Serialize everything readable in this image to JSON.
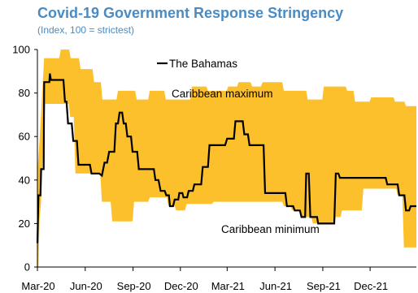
{
  "title": "Covid-19 Government Response Stringency",
  "subtitle": "(Index, 100 = strictest)",
  "colors": {
    "band": "#fcc02c",
    "line": "#000000",
    "title": "#4a8bc2"
  },
  "chart_data": {
    "type": "area",
    "title": "Covid-19 Government Response Stringency",
    "subtitle": "(Index, 100 = strictest)",
    "xlabel": "",
    "ylabel": "",
    "ylim": [
      0,
      100
    ],
    "yticks": [
      0,
      20,
      40,
      60,
      80,
      100
    ],
    "xticks": [
      {
        "date": "2020-03-01",
        "label": "Mar-20"
      },
      {
        "date": "2020-06-01",
        "label": "Jun-20"
      },
      {
        "date": "2020-09-01",
        "label": "Sep-20"
      },
      {
        "date": "2020-12-01",
        "label": "Dec-20"
      },
      {
        "date": "2021-03-01",
        "label": "Mar-21"
      },
      {
        "date": "2021-06-01",
        "label": "Jun-21"
      },
      {
        "date": "2021-09-01",
        "label": "Sep-21"
      },
      {
        "date": "2021-12-01",
        "label": "Dec-21"
      }
    ],
    "xlim": [
      "2020-03-01",
      "2022-02-28"
    ],
    "grid": false,
    "series": [
      {
        "name": "The Bahamas",
        "type": "line",
        "points": [
          [
            "2020-03-01",
            11
          ],
          [
            "2020-03-03",
            33
          ],
          [
            "2020-03-07",
            33
          ],
          [
            "2020-03-08",
            45
          ],
          [
            "2020-03-13",
            45
          ],
          [
            "2020-03-14",
            85
          ],
          [
            "2020-03-24",
            85
          ],
          [
            "2020-03-25",
            89
          ],
          [
            "2020-03-27",
            86
          ],
          [
            "2020-04-20",
            86
          ],
          [
            "2020-04-23",
            76
          ],
          [
            "2020-04-26",
            76
          ],
          [
            "2020-04-29",
            66
          ],
          [
            "2020-05-06",
            66
          ],
          [
            "2020-05-09",
            58
          ],
          [
            "2020-05-16",
            58
          ],
          [
            "2020-05-19",
            47
          ],
          [
            "2020-06-10",
            47
          ],
          [
            "2020-06-13",
            43
          ],
          [
            "2020-06-28",
            43
          ],
          [
            "2020-07-03",
            42
          ],
          [
            "2020-07-08",
            48
          ],
          [
            "2020-07-13",
            48
          ],
          [
            "2020-07-17",
            53
          ],
          [
            "2020-07-27",
            53
          ],
          [
            "2020-07-30",
            66
          ],
          [
            "2020-08-03",
            66
          ],
          [
            "2020-08-06",
            71
          ],
          [
            "2020-08-11",
            71
          ],
          [
            "2020-08-14",
            66
          ],
          [
            "2020-08-18",
            66
          ],
          [
            "2020-08-21",
            60
          ],
          [
            "2020-08-28",
            60
          ],
          [
            "2020-08-31",
            53
          ],
          [
            "2020-09-09",
            53
          ],
          [
            "2020-09-12",
            45
          ],
          [
            "2020-10-11",
            45
          ],
          [
            "2020-10-14",
            40
          ],
          [
            "2020-10-20",
            40
          ],
          [
            "2020-10-24",
            35
          ],
          [
            "2020-11-01",
            35
          ],
          [
            "2020-11-04",
            33
          ],
          [
            "2020-11-09",
            33
          ],
          [
            "2020-11-11",
            28
          ],
          [
            "2020-11-17",
            28
          ],
          [
            "2020-11-20",
            31
          ],
          [
            "2020-11-27",
            31
          ],
          [
            "2020-11-29",
            34
          ],
          [
            "2020-12-05",
            34
          ],
          [
            "2020-12-07",
            32
          ],
          [
            "2020-12-14",
            32
          ],
          [
            "2020-12-17",
            35
          ],
          [
            "2020-12-25",
            35
          ],
          [
            "2020-12-28",
            38
          ],
          [
            "2021-01-10",
            38
          ],
          [
            "2021-01-13",
            46
          ],
          [
            "2021-01-23",
            46
          ],
          [
            "2021-01-26",
            56
          ],
          [
            "2021-02-25",
            56
          ],
          [
            "2021-03-01",
            59
          ],
          [
            "2021-03-14",
            59
          ],
          [
            "2021-03-17",
            67
          ],
          [
            "2021-03-31",
            67
          ],
          [
            "2021-04-03",
            61
          ],
          [
            "2021-04-10",
            61
          ],
          [
            "2021-04-13",
            56
          ],
          [
            "2021-05-10",
            56
          ],
          [
            "2021-05-13",
            34
          ],
          [
            "2021-06-21",
            34
          ],
          [
            "2021-06-24",
            28
          ],
          [
            "2021-07-06",
            28
          ],
          [
            "2021-07-09",
            26
          ],
          [
            "2021-07-19",
            26
          ],
          [
            "2021-07-22",
            23
          ],
          [
            "2021-07-29",
            23
          ],
          [
            "2021-07-31",
            43
          ],
          [
            "2021-08-05",
            43
          ],
          [
            "2021-08-08",
            23
          ],
          [
            "2021-08-21",
            23
          ],
          [
            "2021-08-23",
            20
          ],
          [
            "2021-09-23",
            20
          ],
          [
            "2021-09-26",
            43
          ],
          [
            "2021-10-01",
            43
          ],
          [
            "2021-10-04",
            41
          ],
          [
            "2021-12-31",
            41
          ],
          [
            "2022-01-03",
            38
          ],
          [
            "2022-01-23",
            38
          ],
          [
            "2022-01-26",
            33
          ],
          [
            "2022-02-05",
            33
          ],
          [
            "2022-02-08",
            26
          ],
          [
            "2022-02-14",
            26
          ],
          [
            "2022-02-17",
            28
          ],
          [
            "2022-02-28",
            28
          ]
        ]
      },
      {
        "name": "Caribbean maximum",
        "type": "band-upper",
        "points": [
          [
            "2020-03-01",
            44
          ],
          [
            "2020-03-05",
            58
          ],
          [
            "2020-03-08",
            70
          ],
          [
            "2020-03-10",
            80
          ],
          [
            "2020-03-14",
            96
          ],
          [
            "2020-04-12",
            96
          ],
          [
            "2020-04-15",
            100
          ],
          [
            "2020-05-01",
            100
          ],
          [
            "2020-05-04",
            96
          ],
          [
            "2020-05-20",
            96
          ],
          [
            "2020-05-23",
            91
          ],
          [
            "2020-06-15",
            91
          ],
          [
            "2020-06-18",
            85
          ],
          [
            "2020-07-01",
            85
          ],
          [
            "2020-07-04",
            77
          ],
          [
            "2020-07-31",
            77
          ],
          [
            "2020-08-03",
            81
          ],
          [
            "2020-09-05",
            81
          ],
          [
            "2020-09-08",
            77
          ],
          [
            "2020-09-30",
            77
          ],
          [
            "2020-10-03",
            81
          ],
          [
            "2020-10-31",
            81
          ],
          [
            "2020-11-03",
            77
          ],
          [
            "2020-12-20",
            77
          ],
          [
            "2020-12-23",
            83
          ],
          [
            "2021-01-20",
            83
          ],
          [
            "2021-01-23",
            81
          ],
          [
            "2021-02-28",
            81
          ],
          [
            "2021-03-03",
            83
          ],
          [
            "2021-03-20",
            83
          ],
          [
            "2021-03-23",
            85
          ],
          [
            "2021-04-15",
            85
          ],
          [
            "2021-04-18",
            83
          ],
          [
            "2021-05-05",
            83
          ],
          [
            "2021-05-08",
            85
          ],
          [
            "2021-06-15",
            85
          ],
          [
            "2021-06-18",
            81
          ],
          [
            "2021-07-31",
            81
          ],
          [
            "2021-08-03",
            77
          ],
          [
            "2021-08-31",
            77
          ],
          [
            "2021-09-03",
            83
          ],
          [
            "2021-10-15",
            83
          ],
          [
            "2021-10-18",
            81
          ],
          [
            "2021-10-30",
            81
          ],
          [
            "2021-11-02",
            76
          ],
          [
            "2021-11-30",
            76
          ],
          [
            "2021-12-03",
            78
          ],
          [
            "2022-01-15",
            78
          ],
          [
            "2022-01-18",
            76
          ],
          [
            "2022-02-05",
            76
          ],
          [
            "2022-02-08",
            74
          ],
          [
            "2022-02-28",
            74
          ]
        ]
      },
      {
        "name": "Caribbean minimum",
        "type": "band-lower",
        "points": [
          [
            "2020-03-01",
            0
          ],
          [
            "2020-03-03",
            0
          ],
          [
            "2020-03-05",
            22
          ],
          [
            "2020-03-08",
            30
          ],
          [
            "2020-03-12",
            55
          ],
          [
            "2020-03-16",
            75
          ],
          [
            "2020-04-30",
            75
          ],
          [
            "2020-05-03",
            69
          ],
          [
            "2020-05-10",
            69
          ],
          [
            "2020-05-13",
            43
          ],
          [
            "2020-06-30",
            43
          ],
          [
            "2020-07-03",
            30
          ],
          [
            "2020-07-20",
            30
          ],
          [
            "2020-07-23",
            21
          ],
          [
            "2020-08-31",
            21
          ],
          [
            "2020-09-03",
            30
          ],
          [
            "2020-09-30",
            30
          ],
          [
            "2020-10-03",
            32
          ],
          [
            "2020-11-05",
            32
          ],
          [
            "2020-11-08",
            28
          ],
          [
            "2020-11-20",
            28
          ],
          [
            "2020-11-23",
            26
          ],
          [
            "2020-12-10",
            26
          ],
          [
            "2020-12-13",
            29
          ],
          [
            "2021-01-31",
            29
          ],
          [
            "2021-02-03",
            30
          ],
          [
            "2021-06-15",
            30
          ],
          [
            "2021-06-18",
            28
          ],
          [
            "2021-07-01",
            28
          ],
          [
            "2021-07-04",
            26
          ],
          [
            "2021-07-20",
            26
          ],
          [
            "2021-07-23",
            23
          ],
          [
            "2021-08-10",
            23
          ],
          [
            "2021-08-13",
            20
          ],
          [
            "2021-09-23",
            20
          ],
          [
            "2021-09-26",
            23
          ],
          [
            "2021-10-05",
            23
          ],
          [
            "2021-10-08",
            26
          ],
          [
            "2021-11-15",
            26
          ],
          [
            "2021-11-18",
            36
          ],
          [
            "2022-01-20",
            36
          ],
          [
            "2022-01-23",
            33
          ],
          [
            "2022-02-01",
            33
          ],
          [
            "2022-02-04",
            9
          ],
          [
            "2022-02-28",
            9
          ]
        ]
      }
    ],
    "annotations": [
      {
        "text": "The Bahamas",
        "legend": true
      },
      {
        "text": "Caribbean maximum"
      },
      {
        "text": "Caribbean minimum"
      }
    ]
  }
}
